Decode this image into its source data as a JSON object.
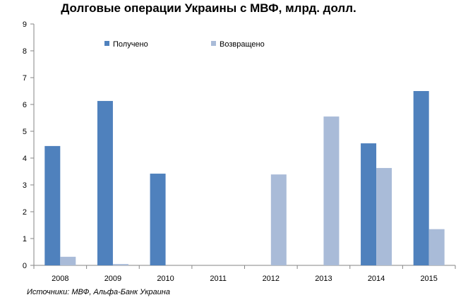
{
  "chart_data": {
    "type": "bar",
    "title": "Долговые операции Украины с МВФ, млрд. долл.",
    "categories": [
      "2008",
      "2009",
      "2010",
      "2011",
      "2012",
      "2013",
      "2014",
      "2015"
    ],
    "series": [
      {
        "name": "Получено",
        "color": "#4f81bd",
        "values": [
          4.45,
          6.13,
          3.42,
          0,
          0,
          0,
          4.55,
          6.5
        ]
      },
      {
        "name": "Возвращено",
        "color": "#a9bbd8",
        "values": [
          0.32,
          0.05,
          0,
          0,
          3.39,
          5.55,
          3.63,
          1.35
        ]
      }
    ],
    "ylim": [
      0,
      9
    ],
    "yticks": [
      "0",
      "1",
      "2",
      "3",
      "4",
      "5",
      "6",
      "7",
      "8",
      "9"
    ],
    "grid": false,
    "legend_position": "top",
    "source": "Источники: МВФ, Альфа-Банк Украина"
  }
}
